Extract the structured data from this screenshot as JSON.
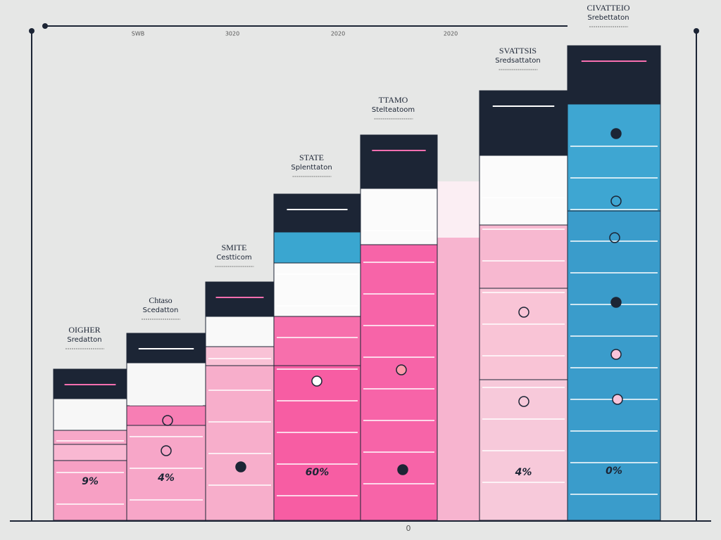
{
  "top_labels": [
    "SWB",
    "3020",
    "2020",
    "2020"
  ],
  "bottom_label": "0",
  "columns": [
    {
      "title": "OIGHER",
      "subtitle": "Sredatton",
      "percent": "9%"
    },
    {
      "title": "Chtaso",
      "subtitle": "Scedatton",
      "percent": "4%"
    },
    {
      "title": "SMITE",
      "subtitle": "Cestticom"
    },
    {
      "title": "STATE",
      "subtitle": "Splenttaton",
      "percent": "60%"
    },
    {
      "title": "TTAMO",
      "subtitle": "Stelteatoom"
    },
    {
      "title": "SVATTSIS",
      "subtitle": "Sredsattaton",
      "percent": "4%"
    },
    {
      "title": "CIVATTEIO",
      "subtitle": "Srebettaton",
      "percent": "0%"
    }
  ]
}
